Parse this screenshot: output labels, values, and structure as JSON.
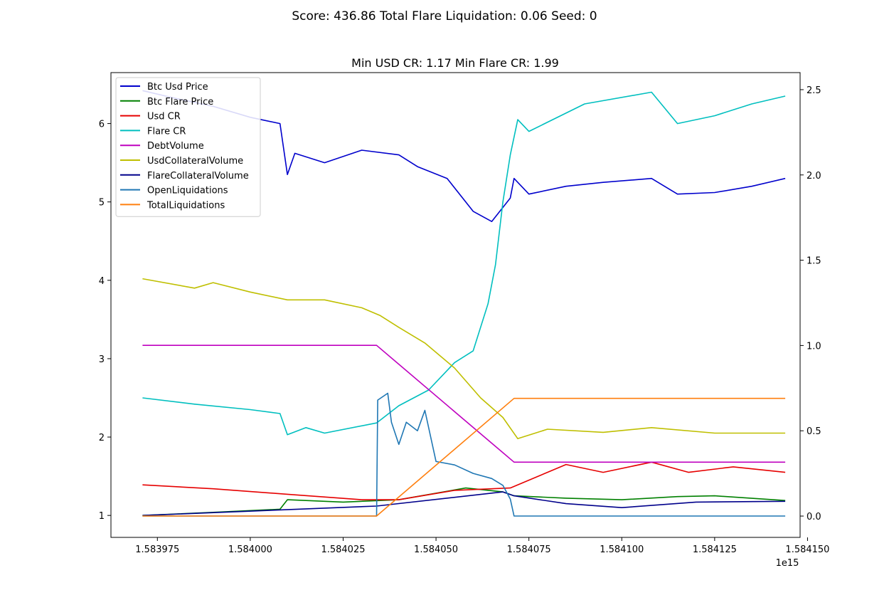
{
  "figure": {
    "suptitle": "Score: 436.86 Total Flare Liquidation: 0.06 Seed: 0",
    "axes_title": "Min USD CR: 1.17 Min Flare CR: 1.99",
    "offset_text": "1e15"
  },
  "chart_data": {
    "type": "line",
    "title": "Min USD CR: 1.17 Min Flare CR: 1.99",
    "xlabel": "",
    "ylabel": "",
    "xlim": [
      1583962500000000,
      1584148000000000
    ],
    "ylim_left": [
      0.72,
      6.65
    ],
    "ylim_right": [
      -0.125,
      2.6
    ],
    "x_ticks": [
      1583975000000000,
      1584000000000000,
      1584025000000000,
      1584050000000000,
      1584075000000000,
      1584100000000000,
      1584125000000000,
      1584150000000000
    ],
    "x_tick_labels": [
      "1.583975",
      "1.584000",
      "1.584025",
      "1.584050",
      "1.584075",
      "1.584100",
      "1.584125",
      "1.584150"
    ],
    "y_ticks_left": [
      1,
      2,
      3,
      4,
      5,
      6
    ],
    "y_tick_labels_left": [
      "1",
      "2",
      "3",
      "4",
      "5",
      "6"
    ],
    "y_ticks_right": [
      0.0,
      0.5,
      1.0,
      1.5,
      2.0,
      2.5
    ],
    "y_tick_labels_right": [
      "0.0",
      "0.5",
      "1.0",
      "1.5",
      "2.0",
      "2.5"
    ],
    "x_offset_label": "1e15",
    "grid": false,
    "legend_position": "top-left",
    "series": [
      {
        "name": "Btc Usd Price",
        "color": "#0000cc",
        "axis": "left",
        "x": [
          1583971000000000,
          1583980000000000,
          1583990000000000,
          1584000000000000,
          1584008000000000,
          1584010000000000,
          1584012000000000,
          1584020000000000,
          1584030000000000,
          1584040000000000,
          1584045000000000,
          1584053000000000,
          1584060000000000,
          1584065000000000,
          1584070000000000,
          1584071000000000,
          1584075000000000,
          1584085000000000,
          1584095000000000,
          1584108000000000,
          1584115000000000,
          1584125000000000,
          1584135000000000,
          1584144000000000
        ],
        "y": [
          6.42,
          6.32,
          6.22,
          6.08,
          6.0,
          5.35,
          5.62,
          5.5,
          5.66,
          5.6,
          5.45,
          5.3,
          4.88,
          4.75,
          5.05,
          5.3,
          5.1,
          5.2,
          5.25,
          5.3,
          5.1,
          5.12,
          5.2,
          5.3
        ]
      },
      {
        "name": "Btc Flare Price",
        "color": "#008000",
        "axis": "left",
        "x": [
          1583971000000000,
          1583990000000000,
          1584008000000000,
          1584010000000000,
          1584025000000000,
          1584040000000000,
          1584058000000000,
          1584068000000000,
          1584071000000000,
          1584085000000000,
          1584100000000000,
          1584115000000000,
          1584125000000000,
          1584144000000000
        ],
        "y": [
          1.0,
          1.04,
          1.08,
          1.2,
          1.17,
          1.2,
          1.35,
          1.3,
          1.25,
          1.22,
          1.2,
          1.24,
          1.25,
          1.19
        ]
      },
      {
        "name": "Usd CR",
        "color": "#e60000",
        "axis": "left",
        "x": [
          1583971000000000,
          1583990000000000,
          1584010000000000,
          1584030000000000,
          1584040000000000,
          1584055000000000,
          1584070000000000,
          1584085000000000,
          1584095000000000,
          1584108000000000,
          1584118000000000,
          1584130000000000,
          1584144000000000
        ],
        "y": [
          1.39,
          1.34,
          1.27,
          1.2,
          1.2,
          1.32,
          1.35,
          1.65,
          1.55,
          1.68,
          1.55,
          1.62,
          1.55
        ]
      },
      {
        "name": "Flare CR",
        "color": "#00bfbf",
        "axis": "left",
        "x": [
          1583971000000000,
          1583985000000000,
          1584000000000000,
          1584008000000000,
          1584010000000000,
          1584015000000000,
          1584020000000000,
          1584034000000000,
          1584040000000000,
          1584048000000000,
          1584055000000000,
          1584060000000000,
          1584064000000000,
          1584066000000000,
          1584068000000000,
          1584070000000000,
          1584072000000000,
          1584075000000000,
          1584090000000000,
          1584108000000000,
          1584115000000000,
          1584125000000000,
          1584135000000000,
          1584144000000000
        ],
        "y": [
          2.5,
          2.42,
          2.35,
          2.3,
          2.03,
          2.12,
          2.05,
          2.18,
          2.4,
          2.6,
          2.95,
          3.1,
          3.7,
          4.2,
          5.0,
          5.6,
          6.05,
          5.9,
          6.25,
          6.4,
          6.0,
          6.1,
          6.25,
          6.35
        ]
      },
      {
        "name": "DebtVolume",
        "color": "#bf00bf",
        "axis": "left",
        "x": [
          1583971000000000,
          1584034000000000,
          1584071000000000,
          1584144000000000
        ],
        "y": [
          3.17,
          3.17,
          1.68,
          1.68
        ]
      },
      {
        "name": "UsdCollateralVolume",
        "color": "#bfbf00",
        "axis": "left",
        "x": [
          1583971000000000,
          1583985000000000,
          1583990000000000,
          1584000000000000,
          1584010000000000,
          1584020000000000,
          1584030000000000,
          1584035000000000,
          1584040000000000,
          1584047000000000,
          1584055000000000,
          1584062000000000,
          1584068000000000,
          1584072000000000,
          1584080000000000,
          1584095000000000,
          1584108000000000,
          1584125000000000,
          1584144000000000
        ],
        "y": [
          4.02,
          3.9,
          3.97,
          3.85,
          3.75,
          3.75,
          3.65,
          3.55,
          3.4,
          3.2,
          2.88,
          2.5,
          2.25,
          1.98,
          2.1,
          2.06,
          2.12,
          2.05,
          2.05
        ]
      },
      {
        "name": "FlareCollateralVolume",
        "color": "#00008b",
        "axis": "left",
        "x": [
          1583971000000000,
          1584034000000000,
          1584068000000000,
          1584071000000000,
          1584085000000000,
          1584100000000000,
          1584120000000000,
          1584144000000000
        ],
        "y": [
          1.0,
          1.12,
          1.3,
          1.25,
          1.15,
          1.1,
          1.17,
          1.18
        ]
      },
      {
        "name": "OpenLiquidations",
        "color": "#1f77b4",
        "axis": "right",
        "x": [
          1583971000000000,
          1584034000000000,
          1584034300000000,
          1584037000000000,
          1584038000000000,
          1584040000000000,
          1584042000000000,
          1584045000000000,
          1584047000000000,
          1584050000000000,
          1584055000000000,
          1584060000000000,
          1584065000000000,
          1584068000000000,
          1584070000000000,
          1584071000000000,
          1584072000000000,
          1584144000000000
        ],
        "y": [
          0.0,
          0.0,
          0.68,
          0.72,
          0.55,
          0.42,
          0.55,
          0.5,
          0.62,
          0.32,
          0.3,
          0.25,
          0.22,
          0.18,
          0.1,
          0.0,
          0.0,
          0.0
        ]
      },
      {
        "name": "TotalLiquidations",
        "color": "#ff7f0e",
        "axis": "right",
        "x": [
          1583971000000000,
          1584034000000000,
          1584071000000000,
          1584144000000000
        ],
        "y": [
          0.0,
          0.0,
          0.69,
          0.69
        ]
      }
    ]
  }
}
